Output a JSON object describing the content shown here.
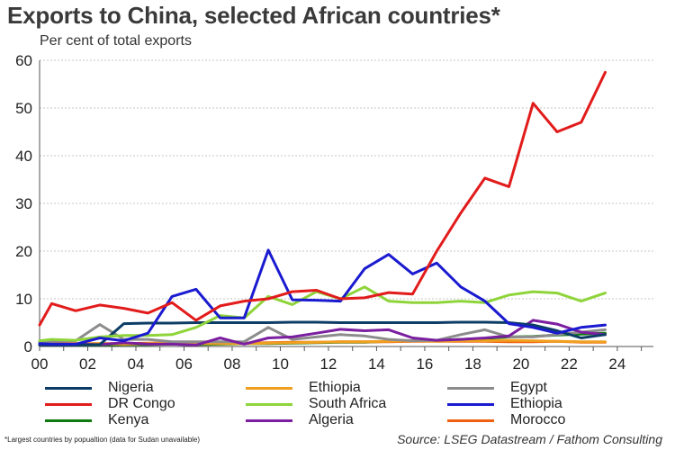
{
  "chart_data": {
    "type": "line",
    "title": "Exports to China, selected African countries*",
    "subtitle": "Per cent of total exports",
    "xlabel": "",
    "ylabel": "",
    "xlim": [
      2000,
      2025.5
    ],
    "ylim": [
      0,
      60
    ],
    "yticks": [
      0,
      10,
      20,
      30,
      40,
      50,
      60
    ],
    "xticks": [
      2000,
      2002,
      2004,
      2006,
      2008,
      2010,
      2012,
      2014,
      2016,
      2018,
      2020,
      2022,
      2024
    ],
    "xtick_labels": [
      "00",
      "02",
      "04",
      "06",
      "08",
      "10",
      "12",
      "14",
      "16",
      "18",
      "20",
      "22",
      "24"
    ],
    "grid": "horizontal",
    "legend_position": "bottom",
    "x": [
      2000,
      2000.5,
      2001.5,
      2002.5,
      2003.5,
      2004.5,
      2005.5,
      2006.5,
      2007.5,
      2008.5,
      2009.5,
      2010.5,
      2011.5,
      2012.5,
      2013.5,
      2014.5,
      2015.5,
      2016.5,
      2017.5,
      2018.5,
      2019.5,
      2020.5,
      2021.5,
      2022.5,
      2023.5
    ],
    "series": [
      {
        "name": "Nigeria",
        "color": "#0d3d66",
        "values": [
          0.3,
          0.3,
          0.3,
          0.4,
          4.8,
          4.9,
          4.9,
          5.0,
          5.0,
          5.0,
          5.0,
          5.1,
          5.1,
          5.0,
          5.0,
          5.0,
          5.0,
          5.0,
          5.1,
          5.1,
          5.0,
          4.5,
          3.3,
          1.8,
          2.5
        ]
      },
      {
        "name": "Ethiopia",
        "color": "#f0a020",
        "values": [
          0.5,
          0.4,
          0.5,
          0.6,
          0.5,
          0.6,
          0.7,
          0.6,
          0.6,
          0.6,
          0.7,
          0.8,
          0.9,
          1.0,
          1.0,
          1.1,
          1.2,
          1.1,
          1.2,
          1.2,
          1.3,
          1.2,
          1.1,
          1.0,
          1.0
        ]
      },
      {
        "name": "Egypt",
        "color": "#8c8c8c",
        "values": [
          1.0,
          1.1,
          1.2,
          4.6,
          1.5,
          1.5,
          1.0,
          1.0,
          1.0,
          1.0,
          4.0,
          1.5,
          2.0,
          2.5,
          2.2,
          1.5,
          1.2,
          1.3,
          2.5,
          3.5,
          2.0,
          2.0,
          2.5,
          3.0,
          3.5
        ]
      },
      {
        "name": "DR Congo",
        "color": "#e21b1b",
        "values": [
          4.5,
          9.0,
          7.5,
          8.7,
          8.0,
          7.0,
          9.2,
          5.5,
          8.5,
          9.5,
          10.0,
          11.5,
          11.8,
          10.0,
          10.2,
          11.3,
          11.0,
          20.0,
          28.0,
          35.3,
          33.5,
          51.0,
          45.0,
          47.0,
          57.5
        ]
      },
      {
        "name": "South Africa",
        "color": "#8ed43a",
        "values": [
          1.2,
          1.5,
          1.3,
          2.0,
          2.3,
          2.3,
          2.5,
          4.0,
          6.5,
          6.0,
          10.5,
          8.8,
          11.5,
          10.0,
          12.5,
          9.5,
          9.2,
          9.2,
          9.5,
          9.2,
          10.8,
          11.5,
          11.2,
          9.5,
          11.2
        ]
      },
      {
        "name": "Ethiopia",
        "color": "#1a1ad0",
        "values": [
          0.6,
          0.5,
          0.5,
          1.8,
          1.2,
          2.8,
          10.5,
          12.0,
          6.0,
          6.0,
          20.2,
          9.8,
          9.7,
          9.5,
          16.3,
          19.3,
          15.2,
          17.5,
          12.5,
          9.5,
          4.8,
          4.0,
          2.8,
          4.0,
          4.5
        ]
      },
      {
        "name": "Kenya",
        "color": "#0f7a0f",
        "values": [
          0.3,
          0.3,
          0.3,
          0.3,
          0.4,
          0.4,
          0.5,
          0.4,
          0.5,
          0.6,
          0.6,
          0.7,
          0.8,
          0.9,
          0.9,
          1.1,
          1.2,
          1.3,
          1.5,
          1.7,
          2.0,
          2.1,
          2.4,
          2.6,
          2.8
        ]
      },
      {
        "name": "Algeria",
        "color": "#7b1fa0",
        "values": [
          0.3,
          0.3,
          0.5,
          0.4,
          0.8,
          0.5,
          0.5,
          0.3,
          1.8,
          0.5,
          1.8,
          2.0,
          2.8,
          3.6,
          3.3,
          3.5,
          1.8,
          1.3,
          1.5,
          1.8,
          2.2,
          5.5,
          4.7,
          3.0,
          2.5
        ]
      },
      {
        "name": "Morocco",
        "color": "#f06010",
        "values": [
          0.6,
          0.6,
          0.6,
          0.6,
          0.6,
          0.7,
          0.7,
          0.8,
          0.8,
          0.7,
          0.8,
          0.9,
          0.9,
          1.0,
          1.0,
          1.0,
          1.1,
          1.1,
          1.1,
          1.1,
          1.0,
          1.0,
          1.1,
          0.9,
          0.9
        ]
      }
    ]
  },
  "footnote": "*Largest countries by popualtion (data for Sudan unavailable)",
  "source": "Source: LSEG Datastream / Fathom Consulting"
}
